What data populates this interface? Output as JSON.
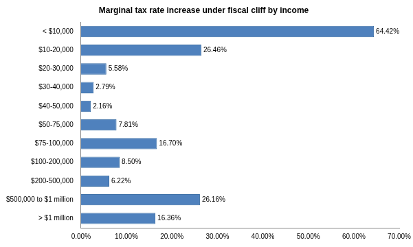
{
  "chart_data": {
    "type": "bar",
    "orientation": "horizontal",
    "title": "Marginal tax rate increase under fiscal cliff by income",
    "categories": [
      "< $10,000",
      "$10-20,000",
      "$20-30,000",
      "$30-40,000",
      "$40-50,000",
      "$50-75,000",
      "$75-100,000",
      "$100-200,000",
      "$200-500,000",
      "$500,000 to $1 million",
      "> $1 million"
    ],
    "values": [
      64.42,
      26.46,
      5.58,
      2.79,
      2.16,
      7.81,
      16.7,
      8.5,
      6.22,
      26.16,
      16.36
    ],
    "value_labels": [
      "64.42%",
      "26.46%",
      "5.58%",
      "2.79%",
      "2.16%",
      "7.81%",
      "16.70%",
      "8.50%",
      "6.22%",
      "26.16%",
      "16.36%"
    ],
    "data_labels": true,
    "color": "#4f81bd",
    "xlim": [
      0,
      70
    ],
    "xticks": [
      {
        "value": 0,
        "label": "0.00%"
      },
      {
        "value": 10,
        "label": "10.00%"
      },
      {
        "value": 20,
        "label": "20.00%"
      },
      {
        "value": 30,
        "label": "30.00%"
      },
      {
        "value": 40,
        "label": "40.00%"
      },
      {
        "value": 50,
        "label": "50.00%"
      },
      {
        "value": 60,
        "label": "60.00%"
      },
      {
        "value": 70,
        "label": "70.00%"
      }
    ],
    "grid": false
  }
}
